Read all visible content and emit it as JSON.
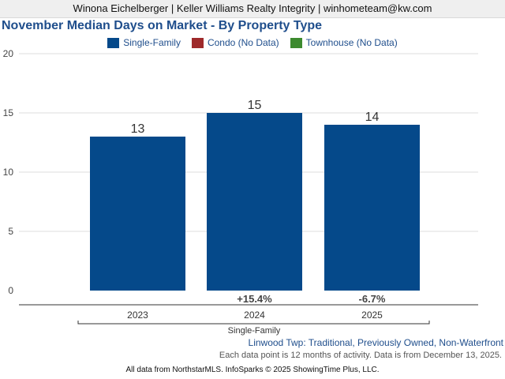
{
  "header": {
    "agent_line": "Winona Eichelberger | Keller Williams Realty Integrity | winhometeam@kw.com"
  },
  "legend": [
    {
      "label": "Single-Family",
      "color": "#05498a"
    },
    {
      "label": "Condo (No Data)",
      "color": "#9e2a2b"
    },
    {
      "label": "Townhouse (No Data)",
      "color": "#3d8a2f"
    }
  ],
  "chart_data": {
    "type": "bar",
    "title": "November Median Days on Market - By Property Type",
    "categories": [
      "2023",
      "2024",
      "2025"
    ],
    "series": [
      {
        "name": "Single-Family",
        "values": [
          13,
          15,
          14
        ],
        "color": "#05498a"
      }
    ],
    "data_labels": [
      "13",
      "15",
      "14"
    ],
    "change_labels": [
      "",
      "+15.4%",
      "-6.7%"
    ],
    "group_label": "Single-Family",
    "ylim": [
      0,
      20
    ],
    "yticks": [
      0,
      5,
      10,
      15,
      20
    ],
    "ytick_labels": [
      "0",
      "5",
      "10",
      "15",
      "20"
    ],
    "grid": true,
    "legend_position": "top-center"
  },
  "footer": {
    "scope": "Linwood Twp: Traditional, Previously Owned, Non-Waterfront",
    "note": "Each data point is 12 months of activity. Data is from December 13, 2025.",
    "source": "All data from NorthstarMLS. InfoSparks © 2025 ShowingTime Plus, LLC."
  }
}
